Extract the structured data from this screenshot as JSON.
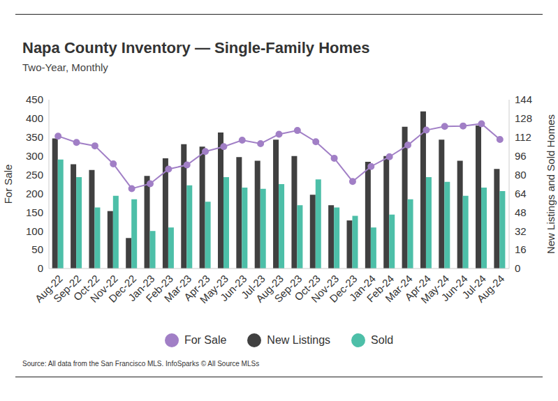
{
  "chart_data": {
    "type": "bar",
    "title": "Napa County Inventory — Single-Family Homes",
    "subtitle": "Two-Year, Monthly",
    "source": "Source:  All data from the San Francisco MLS. InfoSparks © All Source MLSs",
    "y_label": "For Sale",
    "y2_label": "New Listings and Sold Homes",
    "categories": [
      "Aug-22",
      "Sep-22",
      "Oct-22",
      "Nov-22",
      "Dec-22",
      "Jan-23",
      "Feb-23",
      "Mar-23",
      "Apr-23",
      "May-23",
      "Jun-23",
      "Jul-23",
      "Aug-23",
      "Sep-23",
      "Oct-23",
      "Nov-23",
      "Dec-23",
      "Jan-24",
      "Feb-24",
      "Mar-24",
      "Apr-24",
      "May-24",
      "Jun-24",
      "Jul-24",
      "Aug-24"
    ],
    "series": [
      {
        "name": "For Sale",
        "type": "line",
        "color": "#a17fc6",
        "marker": "circle",
        "values": [
          353,
          336,
          327,
          279,
          213,
          226,
          265,
          276,
          312,
          325,
          342,
          333,
          358,
          368,
          338,
          294,
          232,
          272,
          298,
          329,
          369,
          379,
          380,
          386,
          344
        ]
      },
      {
        "name": "New Listings",
        "type": "bar",
        "axis": "y2",
        "color": "#404040",
        "values": [
          111,
          89,
          84,
          49,
          26,
          79,
          94,
          106,
          104,
          116,
          95,
          92,
          110,
          96,
          63,
          54,
          41,
          91,
          96,
          121,
          134,
          110,
          92,
          122,
          85
        ]
      },
      {
        "name": "Sold",
        "type": "bar",
        "axis": "y2",
        "color": "#4dbfa8",
        "values": [
          93,
          78,
          52,
          62,
          59,
          32,
          35,
          71,
          57,
          78,
          69,
          68,
          72,
          54,
          76,
          52,
          45,
          35,
          46,
          59,
          78,
          74,
          62,
          69,
          66
        ]
      }
    ],
    "ylim": [
      0,
      450
    ],
    "yticks": [
      0,
      50,
      100,
      150,
      200,
      250,
      300,
      350,
      400,
      450
    ],
    "y2lim": [
      0,
      144
    ],
    "y2ticks": [
      0,
      16,
      32,
      48,
      64,
      80,
      96,
      112,
      128,
      144
    ],
    "grid": false,
    "legend": "bottom"
  }
}
